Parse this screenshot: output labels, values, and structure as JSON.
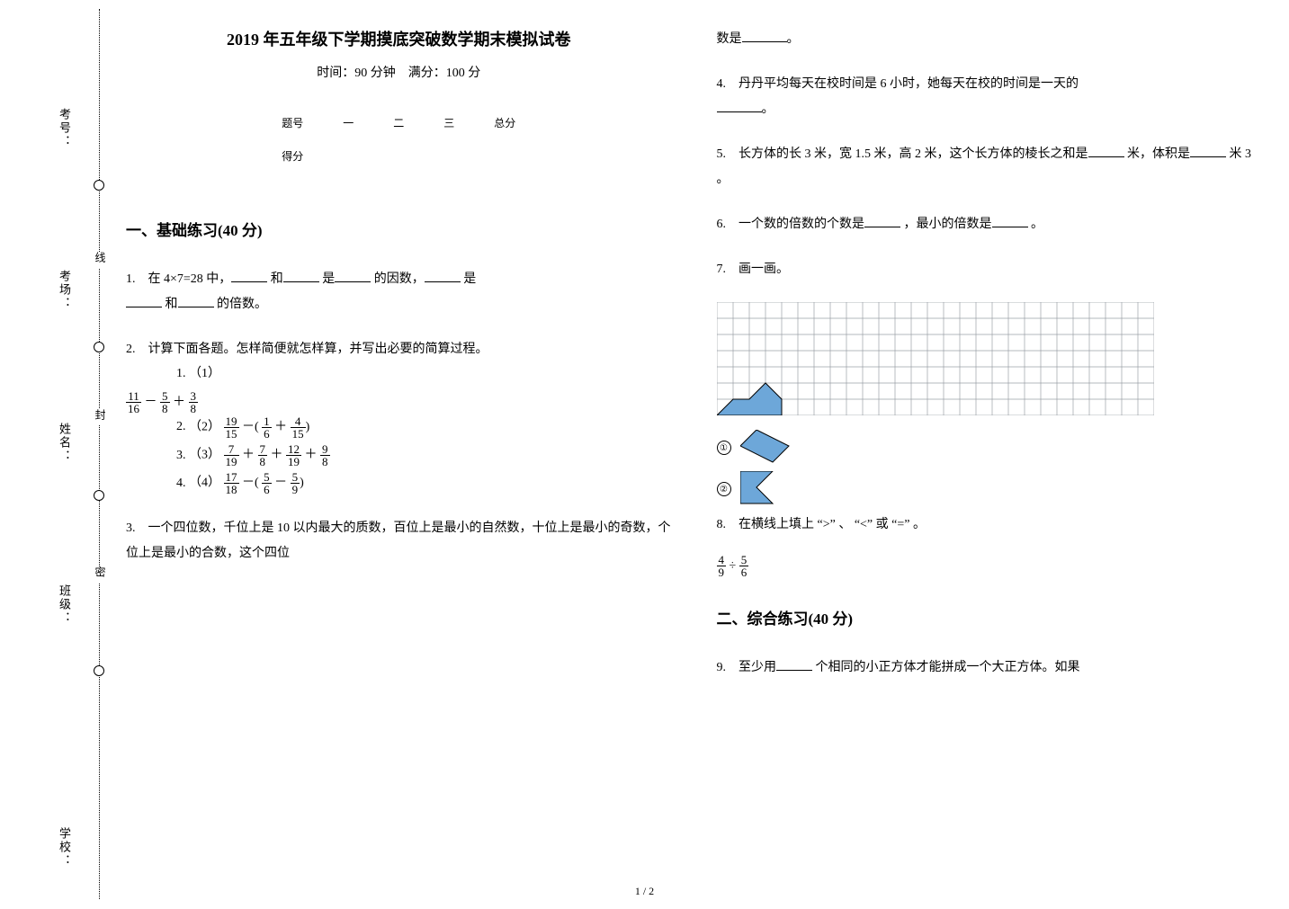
{
  "binding": {
    "labels": [
      "考号：",
      "考场：",
      "姓名：",
      "班级：",
      "学校："
    ],
    "seal": [
      "线",
      "封",
      "密"
    ]
  },
  "header": {
    "title": "2019 年五年级下学期摸底突破数学期末模拟试卷",
    "subtitle": "时间：90 分钟　满分：100 分"
  },
  "scoreTable": {
    "headers": [
      "题号",
      "一",
      "二",
      "三",
      "总分"
    ],
    "row": "得分"
  },
  "section1": {
    "title": "一、基础练习(40 分)"
  },
  "section2": {
    "title": "二、综合练习(40 分)"
  },
  "q1": {
    "prefix": "1.　在 4×7=28 中，",
    "mid1": "和",
    "mid2": " 是",
    "mid3": "的因数，",
    "mid4": "是",
    "tail": "和",
    "tail2": "的倍数。"
  },
  "q2": {
    "stem": "2.　计算下面各题。怎样简便就怎样算，并写出必要的简算过程。",
    "items": [
      "（1）",
      "（2）",
      "（3）",
      "（4）"
    ],
    "expr1": {
      "a_num": "11",
      "a_den": "16",
      "op1": "－",
      "b_num": "5",
      "b_den": "8",
      "op2": "＋",
      "c_num": "3",
      "c_den": "8"
    },
    "expr2": {
      "a_num": "19",
      "a_den": "15",
      "op1": "－",
      "lpar": "(",
      "b_num": "1",
      "b_den": "6",
      "op2": "＋",
      "c_num": "4",
      "c_den": "15",
      "rpar": ")"
    },
    "expr3": {
      "a_num": "7",
      "a_den": "19",
      "op1": "＋",
      "b_num": "7",
      "b_den": "8",
      "op2": "＋",
      "c_num": "12",
      "c_den": "19",
      "op3": "＋",
      "d_num": "9",
      "d_den": "8"
    },
    "expr4": {
      "a_num": "17",
      "a_den": "18",
      "op1": "－",
      "lpar": "(",
      "b_num": "5",
      "b_den": "6",
      "op2": "－",
      "c_num": "5",
      "c_den": "9",
      "rpar": ")"
    }
  },
  "q3": {
    "stem": "3.　一个四位数，千位上是 10 以内最大的质数，百位上是最小的自然数，十位上是最小的奇数，个位上是最小的合数，这个四位",
    "cont": "数是",
    "tail": "。"
  },
  "q4": {
    "stem": "4.　丹丹平均每天在校时间是 6 小时，她每天在校的时间是一天的",
    "tail": "。"
  },
  "q5": {
    "stem": "5.　长方体的长 3 米，宽 1.5 米，高 2 米，这个长方体的棱长之和是",
    "mid": "米，体积是",
    "tail": "米 3 。"
  },
  "q6": {
    "stem": "6.　一个数的倍数的个数是",
    "mid": "，最小的倍数是",
    "tail": "。"
  },
  "q7": {
    "stem": "7.　画一画。"
  },
  "q8": {
    "stem": "8.　在横线上填上 “>” 、 “<” 或 “=” 。",
    "a_num": "4",
    "a_den": "9",
    "op": "÷",
    "b_num": "5",
    "b_den": "6"
  },
  "q9": {
    "stem": "9.　至少用",
    "tail": "个相同的小正方体才能拼成一个大正方体。如果"
  },
  "grid": {
    "cols": 27,
    "rows": 7,
    "cell": 18,
    "stroke": "#9aa0a6",
    "shape1_fill": "#6da7d9",
    "shape2_fill": "#6da7d9",
    "poly1": "0,126 18,108 36,108 54,90 72,108 72,126",
    "poly2_small": "0,0 36,0 18,18 36,36 0,36",
    "tri_small": "0,18 18,0 54,18 36,36"
  },
  "pagenum": "1 / 2",
  "colors": {
    "text": "#000000",
    "grid": "#9aa0a6",
    "fill": "#6da7d9"
  }
}
